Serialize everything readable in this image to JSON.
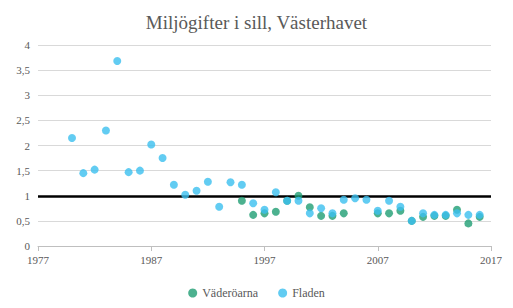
{
  "chart_data": {
    "type": "scatter",
    "title": "Miljögifter i sill, Västerhavet",
    "series": [
      {
        "name": "Väderöarna",
        "color": "#1f9e73",
        "marker": "circle",
        "x": [
          1995,
          1996,
          1997,
          1998,
          1999,
          2000,
          2001,
          2002,
          2003,
          2004,
          2007,
          2008,
          2009,
          2010,
          2011,
          2012,
          2013,
          2014,
          2015,
          2016
        ],
        "values": [
          0.9,
          0.62,
          0.65,
          0.68,
          0.9,
          1.0,
          0.77,
          0.6,
          0.6,
          0.65,
          0.65,
          0.65,
          0.7,
          0.5,
          0.58,
          0.6,
          0.6,
          0.72,
          0.45,
          0.58
        ]
      },
      {
        "name": "Fladen",
        "color": "#3bbfef",
        "marker": "circle",
        "x": [
          1980,
          1981,
          1982,
          1983,
          1984,
          1985,
          1986,
          1987,
          1988,
          1989,
          1990,
          1991,
          1992,
          1993,
          1994,
          1995,
          1996,
          1997,
          1998,
          1999,
          2000,
          2001,
          2002,
          2003,
          2004,
          2005,
          2006,
          2007,
          2008,
          2009,
          2010,
          2011,
          2012,
          2013,
          2014,
          2015,
          2016
        ],
        "values": [
          2.15,
          1.45,
          1.52,
          2.3,
          3.68,
          1.47,
          1.5,
          2.02,
          1.75,
          1.22,
          1.02,
          1.1,
          1.28,
          0.78,
          1.27,
          1.22,
          0.85,
          0.72,
          1.07,
          0.9,
          0.9,
          0.65,
          0.75,
          0.65,
          0.92,
          0.95,
          0.92,
          0.7,
          0.9,
          0.78,
          0.5,
          0.65,
          0.62,
          0.62,
          0.65,
          0.62,
          0.62
        ]
      }
    ],
    "threshold": 1,
    "xlim": [
      1977,
      2017
    ],
    "xticks": [
      1977,
      1987,
      1997,
      2007,
      2017
    ],
    "ylim": [
      0,
      4
    ],
    "yticks": [
      0,
      {
        "value": 0.5,
        "label": "0,5"
      },
      1,
      {
        "value": 1.5,
        "label": "1,5"
      },
      2,
      {
        "value": 2.5,
        "label": "2,5"
      },
      3,
      {
        "value": 3.5,
        "label": "3,5"
      },
      4
    ],
    "grid": true,
    "legend": "bottom"
  }
}
